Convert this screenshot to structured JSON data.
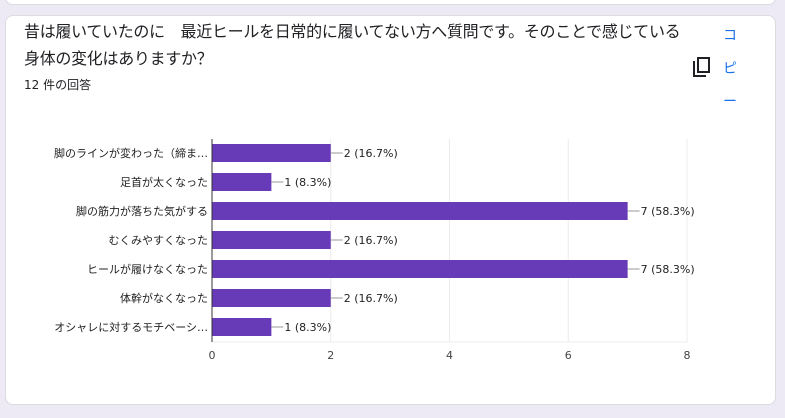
{
  "question": {
    "title": "昔は履いていたのに　最近ヒールを日常的に履いてない方へ質問です。そのことで感じている身体の変化はありますか？",
    "response_count": "12 件の回答",
    "copy_label": [
      "コ",
      "ピ",
      "ー"
    ]
  },
  "colors": {
    "bar": "#673ab7",
    "accent": "#1a73e8"
  },
  "chart_data": {
    "type": "bar",
    "orientation": "horizontal",
    "categories": [
      "脚のラインが変わった（締ま…",
      "足首が太くなった",
      "脚の筋力が落ちた気がする",
      "むくみやすくなった",
      "ヒールが履けなくなった",
      "体幹がなくなった",
      "オシャレに対するモチベーシ…"
    ],
    "values": [
      2,
      1,
      7,
      2,
      7,
      2,
      1
    ],
    "data_labels": [
      "2 (16.7%)",
      "1 (8.3%)",
      "7 (58.3%)",
      "2 (16.7%)",
      "7 (58.3%)",
      "2 (16.7%)",
      "1 (8.3%)"
    ],
    "xlim": [
      0,
      8
    ],
    "xticks": [
      "0",
      "2",
      "4",
      "6",
      "8"
    ],
    "grid": true
  }
}
